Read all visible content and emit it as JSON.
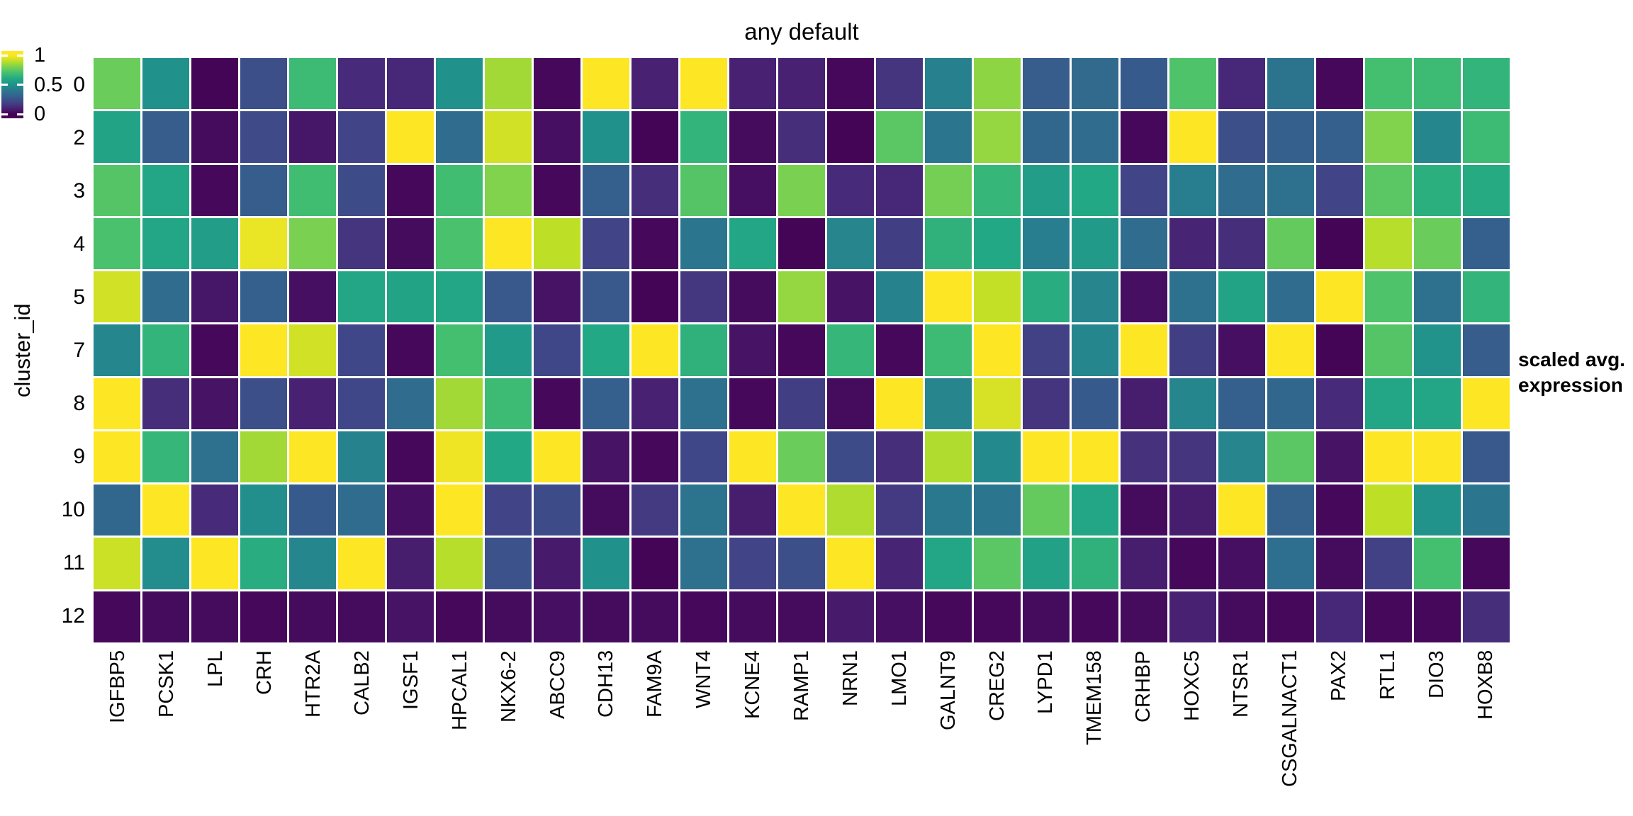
{
  "title": "any default",
  "y_axis_label": "cluster_id",
  "legend": {
    "title_line1": "scaled avg.",
    "title_line2": "expression",
    "tick_labels": [
      "1",
      "0.5",
      "0"
    ]
  },
  "colors": {
    "background": "#ffffff",
    "text": "#000000",
    "viridis_anchors": [
      "#440154",
      "#482475",
      "#414487",
      "#35608d",
      "#2a788e",
      "#21918c",
      "#22a884",
      "#44bf70",
      "#7ad151",
      "#bddf26",
      "#fde725"
    ]
  },
  "chart_data": {
    "type": "heatmap",
    "title": "any default",
    "xlabel": "",
    "ylabel": "cluster_id",
    "legend_title": "scaled avg. expression",
    "colormap": "viridis",
    "color_range": [
      0,
      1
    ],
    "colorbar_ticks": [
      1,
      0.5,
      0
    ],
    "grid": false,
    "legend_position": "right",
    "columns": [
      "IGFBP5",
      "PCSK1",
      "LPL",
      "CRH",
      "HTR2A",
      "CALB2",
      "IGSF1",
      "HPCAL1",
      "NKX6-2",
      "ABCC9",
      "CDH13",
      "FAM9A",
      "WNT4",
      "KCNE4",
      "RAMP1",
      "NRN1",
      "LMO1",
      "GALNT9",
      "CREG2",
      "LYPD1",
      "TMEM158",
      "CRHBP",
      "HOXC5",
      "NTSR1",
      "CSGALNACT1",
      "PAX2",
      "RTL1",
      "DIO3",
      "HOXB8"
    ],
    "rows": [
      "0",
      "2",
      "3",
      "4",
      "5",
      "7",
      "8",
      "9",
      "10",
      "11",
      "12"
    ],
    "values": [
      [
        0.77,
        0.5,
        0.01,
        0.24,
        0.68,
        0.12,
        0.11,
        0.5,
        0.86,
        0.02,
        1.0,
        0.09,
        1.0,
        0.09,
        0.09,
        0.02,
        0.15,
        0.43,
        0.83,
        0.29,
        0.34,
        0.28,
        0.72,
        0.11,
        0.38,
        0.02,
        0.7,
        0.68,
        0.65
      ],
      [
        0.58,
        0.29,
        0.03,
        0.22,
        0.06,
        0.2,
        1.0,
        0.35,
        0.93,
        0.04,
        0.5,
        0.01,
        0.65,
        0.03,
        0.13,
        0.01,
        0.74,
        0.39,
        0.84,
        0.33,
        0.35,
        0.02,
        1.0,
        0.24,
        0.3,
        0.3,
        0.81,
        0.46,
        0.68
      ],
      [
        0.73,
        0.59,
        0.02,
        0.29,
        0.69,
        0.23,
        0.02,
        0.69,
        0.81,
        0.02,
        0.3,
        0.13,
        0.73,
        0.04,
        0.8,
        0.12,
        0.11,
        0.79,
        0.66,
        0.55,
        0.6,
        0.2,
        0.42,
        0.35,
        0.37,
        0.2,
        0.74,
        0.63,
        0.61
      ],
      [
        0.71,
        0.59,
        0.55,
        0.97,
        0.8,
        0.15,
        0.03,
        0.71,
        1.0,
        0.9,
        0.2,
        0.02,
        0.39,
        0.59,
        0.01,
        0.45,
        0.18,
        0.64,
        0.6,
        0.42,
        0.54,
        0.35,
        0.1,
        0.13,
        0.76,
        0.01,
        0.89,
        0.77,
        0.3
      ],
      [
        0.93,
        0.35,
        0.06,
        0.3,
        0.04,
        0.59,
        0.58,
        0.59,
        0.27,
        0.05,
        0.27,
        0.01,
        0.16,
        0.03,
        0.84,
        0.05,
        0.44,
        1.0,
        0.91,
        0.62,
        0.45,
        0.04,
        0.37,
        0.58,
        0.35,
        1.0,
        0.72,
        0.37,
        0.65
      ],
      [
        0.46,
        0.65,
        0.02,
        1.0,
        0.93,
        0.21,
        0.02,
        0.7,
        0.54,
        0.21,
        0.6,
        1.0,
        0.64,
        0.05,
        0.02,
        0.66,
        0.02,
        0.68,
        1.0,
        0.19,
        0.46,
        1.0,
        0.18,
        0.04,
        1.0,
        0.01,
        0.73,
        0.51,
        0.29
      ],
      [
        1.0,
        0.13,
        0.05,
        0.24,
        0.09,
        0.21,
        0.35,
        0.86,
        0.68,
        0.02,
        0.3,
        0.09,
        0.37,
        0.02,
        0.18,
        0.03,
        1.0,
        0.45,
        0.94,
        0.15,
        0.28,
        0.08,
        0.46,
        0.3,
        0.33,
        0.12,
        0.59,
        0.59,
        1.0
      ],
      [
        1.0,
        0.66,
        0.37,
        0.86,
        1.0,
        0.44,
        0.02,
        0.98,
        0.6,
        1.0,
        0.05,
        0.02,
        0.21,
        1.0,
        0.77,
        0.23,
        0.13,
        0.88,
        0.47,
        1.0,
        1.0,
        0.14,
        0.15,
        0.45,
        0.74,
        0.05,
        1.0,
        1.0,
        0.27
      ],
      [
        0.33,
        1.0,
        0.12,
        0.49,
        0.28,
        0.35,
        0.04,
        1.0,
        0.2,
        0.23,
        0.03,
        0.17,
        0.38,
        0.08,
        1.0,
        0.88,
        0.17,
        0.4,
        0.39,
        0.76,
        0.59,
        0.03,
        0.08,
        1.0,
        0.31,
        0.02,
        0.9,
        0.51,
        0.39
      ],
      [
        0.92,
        0.48,
        1.0,
        0.62,
        0.46,
        1.0,
        0.08,
        0.89,
        0.25,
        0.07,
        0.5,
        0.01,
        0.37,
        0.2,
        0.24,
        1.0,
        0.1,
        0.59,
        0.74,
        0.57,
        0.64,
        0.08,
        0.02,
        0.04,
        0.36,
        0.03,
        0.19,
        0.7,
        0.02
      ],
      [
        0.02,
        0.03,
        0.03,
        0.02,
        0.03,
        0.03,
        0.05,
        0.02,
        0.03,
        0.04,
        0.03,
        0.03,
        0.02,
        0.03,
        0.03,
        0.07,
        0.04,
        0.02,
        0.02,
        0.03,
        0.02,
        0.03,
        0.09,
        0.03,
        0.02,
        0.11,
        0.02,
        0.02,
        0.13
      ]
    ]
  }
}
